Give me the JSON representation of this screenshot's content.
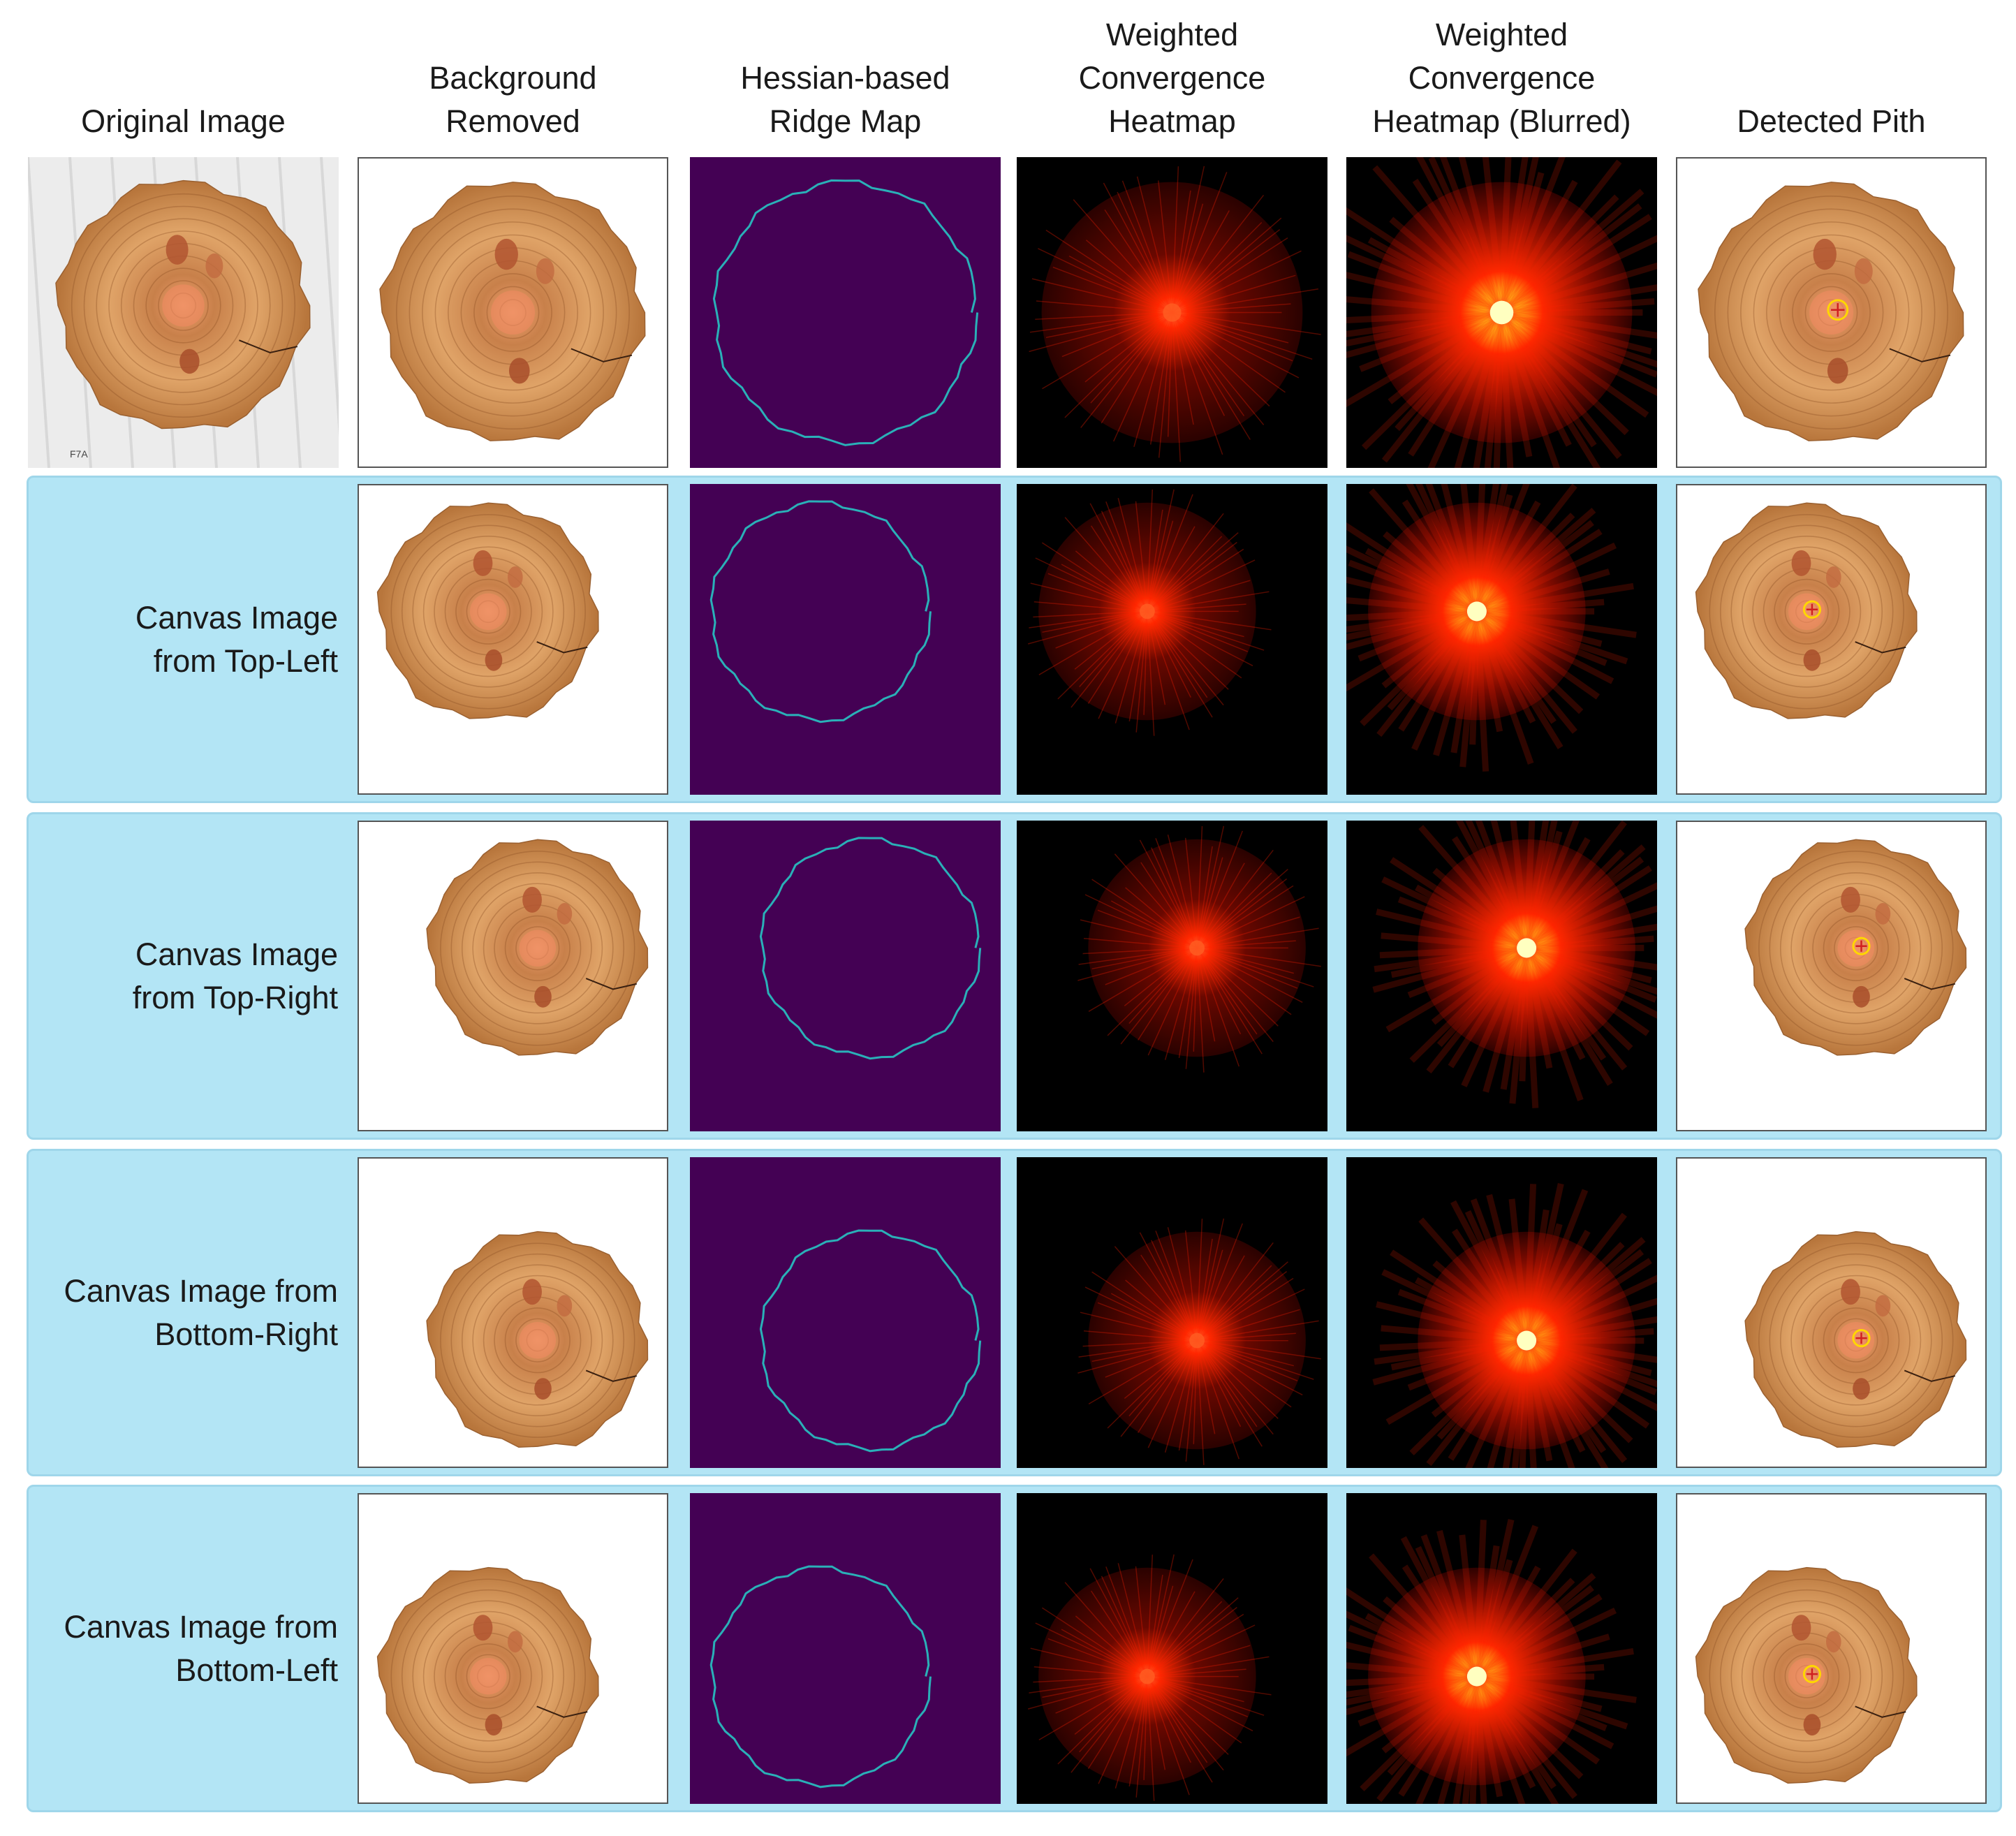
{
  "columns": [
    {
      "id": "original",
      "label": "Original Image"
    },
    {
      "id": "background",
      "label": "Background\nRemoved"
    },
    {
      "id": "ridge",
      "label": "Hessian-based\nRidge Map"
    },
    {
      "id": "heatmap",
      "label": "Weighted\nConvergence\nHeatmap"
    },
    {
      "id": "blurred",
      "label": "Weighted\nConvergence\nHeatmap (Blurred)"
    },
    {
      "id": "pith",
      "label": "Detected Pith"
    }
  ],
  "rows": [
    {
      "id": "original",
      "label": "",
      "tag": "F7A"
    },
    {
      "id": "top-left",
      "label": "Canvas Image\nfrom Top-Left"
    },
    {
      "id": "top-right",
      "label": "Canvas Image\nfrom Top-Right"
    },
    {
      "id": "bottom-right",
      "label": "Canvas Image from\nBottom-Right"
    },
    {
      "id": "bottom-left",
      "label": "Canvas Image from\nBottom-Left"
    }
  ],
  "colors": {
    "band": "#b3e5f5",
    "ridge_background": "#440154",
    "ridge_line": "#2ab0b8",
    "wood_light": "#e0a468",
    "wood_dark": "#8a4e22",
    "heat_core": "#ffff80",
    "heat_mid": "#ff2a00",
    "pith_marker": "#ffd700"
  }
}
